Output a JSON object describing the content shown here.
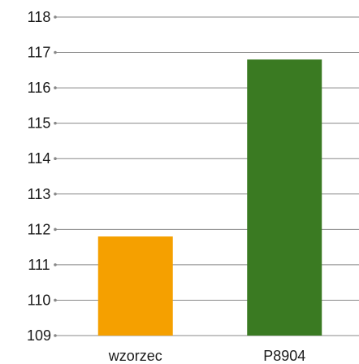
{
  "chart_data": {
    "type": "bar",
    "categories": [
      "wzorzec",
      "P8904"
    ],
    "values": [
      111.8,
      116.8
    ],
    "colors": [
      "#f5a000",
      "#3a7a22"
    ],
    "title": "",
    "xlabel": "",
    "ylabel": "",
    "ylim": [
      109,
      118
    ],
    "yticks": [
      "118",
      "117",
      "116",
      "115",
      "114",
      "113",
      "112",
      "111",
      "110",
      "109"
    ],
    "grid": true,
    "legend": "none"
  }
}
